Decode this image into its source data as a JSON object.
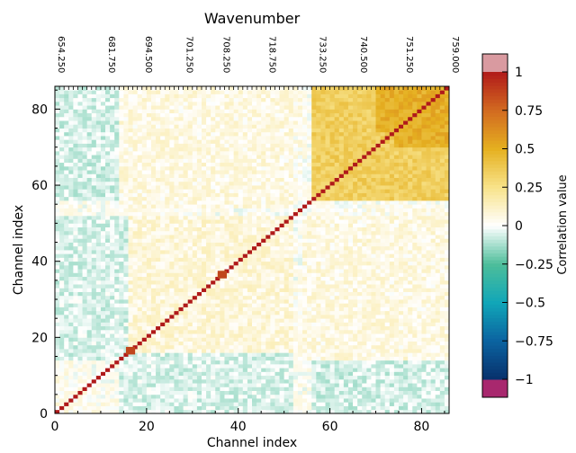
{
  "chart_data": {
    "type": "heatmap",
    "title": "Wavenumber",
    "xlabel": "Channel index",
    "ylabel": "Channel index",
    "n_channels": 86,
    "xlim": [
      0,
      86
    ],
    "ylim": [
      0,
      86
    ],
    "x_ticks": [
      0,
      20,
      40,
      60,
      80
    ],
    "y_ticks": [
      0,
      20,
      40,
      60,
      80
    ],
    "top_axis_labels": [
      {
        "channel": 0,
        "label": "654.250"
      },
      {
        "channel": 11,
        "label": "681.750"
      },
      {
        "channel": 19,
        "label": "694.500"
      },
      {
        "channel": 28,
        "label": "701.250"
      },
      {
        "channel": 36,
        "label": "708.250"
      },
      {
        "channel": 46,
        "label": "718.750"
      },
      {
        "channel": 57,
        "label": "733.250"
      },
      {
        "channel": 66,
        "label": "740.500"
      },
      {
        "channel": 76,
        "label": "751.250"
      },
      {
        "channel": 86,
        "label": "759.000"
      }
    ],
    "colorbar": {
      "label": "Correlation value",
      "range": [
        -1,
        1
      ],
      "ticks": [
        {
          "value": 1,
          "label": "1"
        },
        {
          "value": 0.75,
          "label": "0.75"
        },
        {
          "value": 0.5,
          "label": "0.5"
        },
        {
          "value": 0.25,
          "label": "0.25"
        },
        {
          "value": 0,
          "label": "0"
        },
        {
          "value": -0.25,
          "label": "−0.25"
        },
        {
          "value": -0.5,
          "label": "−0.5"
        },
        {
          "value": -0.75,
          "label": "−0.75"
        },
        {
          "value": -1,
          "label": "−1"
        }
      ],
      "stops": [
        {
          "value": -1.0,
          "color": "#08306b"
        },
        {
          "value": -0.75,
          "color": "#0b63a0"
        },
        {
          "value": -0.5,
          "color": "#11a6b8"
        },
        {
          "value": -0.25,
          "color": "#4dbe9a"
        },
        {
          "value": 0.0,
          "color": "#ffffff"
        },
        {
          "value": 0.25,
          "color": "#f8e38a"
        },
        {
          "value": 0.5,
          "color": "#e5b020"
        },
        {
          "value": 0.75,
          "color": "#d26a20"
        },
        {
          "value": 1.0,
          "color": "#b01a1a"
        }
      ],
      "over_color": "#d99aa0",
      "under_color": "#a8286e"
    },
    "structure": {
      "diagonal_value": 1.0,
      "highlighted_diagonal_channels": [
        16,
        36
      ],
      "blocks": [
        {
          "rows": [
            0,
            12
          ],
          "cols": [
            0,
            12
          ],
          "mean_correlation": 0.03
        },
        {
          "rows": [
            14,
            52
          ],
          "cols": [
            14,
            52
          ],
          "mean_correlation": 0.08
        },
        {
          "rows": [
            56,
            86
          ],
          "cols": [
            56,
            86
          ],
          "mean_correlation": 0.35
        },
        {
          "rows": [
            70,
            86
          ],
          "cols": [
            74,
            86
          ],
          "mean_correlation": 0.5
        },
        {
          "rows": [
            20,
            52
          ],
          "cols": [
            0,
            12
          ],
          "mean_correlation": -0.15
        },
        {
          "rows": [
            56,
            86
          ],
          "cols": [
            0,
            12
          ],
          "mean_correlation": -0.08
        },
        {
          "rows": [
            0,
            16
          ],
          "cols": [
            14,
            52
          ],
          "mean_correlation": -0.05
        },
        {
          "rows": [
            0,
            40
          ],
          "cols": [
            56,
            86
          ],
          "mean_correlation": -0.06
        },
        {
          "rows": [
            40,
            54
          ],
          "cols": [
            56,
            86
          ],
          "mean_correlation": 0.04
        },
        {
          "rows": [
            54,
            86
          ],
          "cols": [
            14,
            52
          ],
          "mean_correlation": 0.06
        }
      ]
    }
  }
}
